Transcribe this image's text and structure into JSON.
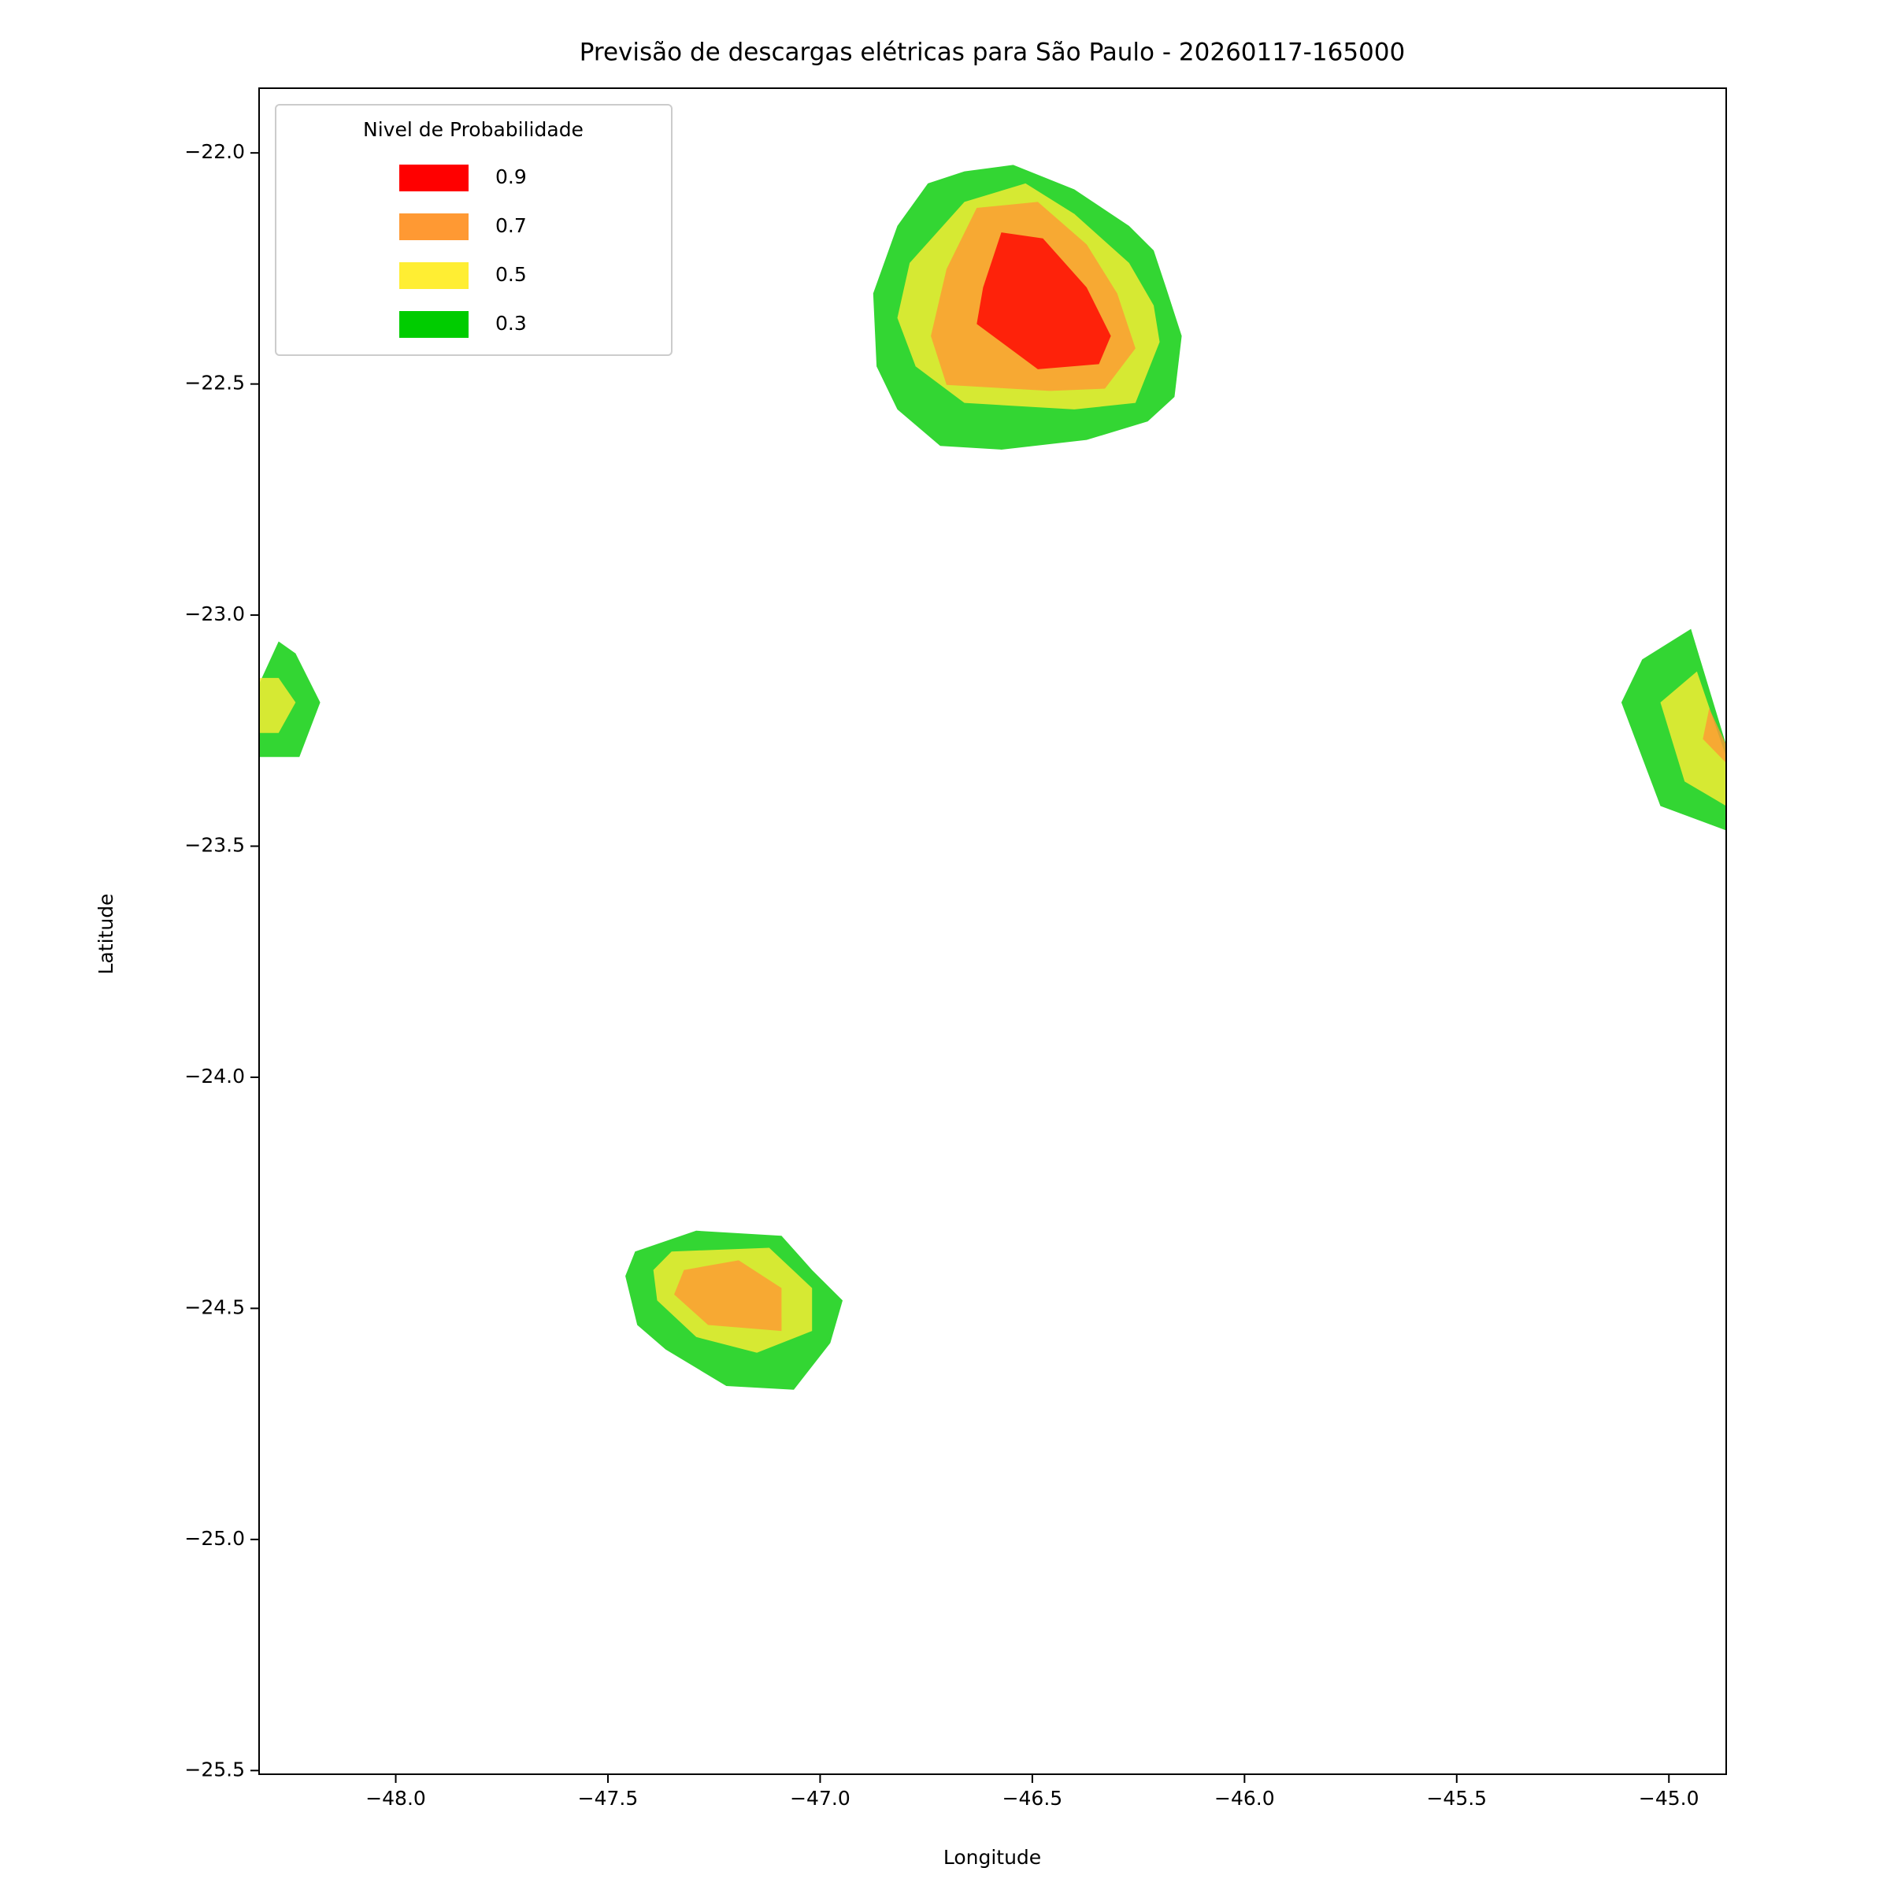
{
  "chart_data": {
    "type": "contour",
    "title": "Previsão de descargas elétricas para São Paulo - 20260117-165000",
    "x_label": "Longitude",
    "y_label": "Latitude",
    "legend_title": "Nivel de Probabilidade",
    "legend_position": "upper left",
    "alpha": 0.8,
    "xlim": [
      -48.322,
      -44.865
    ],
    "ylim": [
      -25.508,
      -21.86
    ],
    "xticks": [
      {
        "value": -48.0,
        "label": "−48.0"
      },
      {
        "value": -47.5,
        "label": "−47.5"
      },
      {
        "value": -47.0,
        "label": "−47.0"
      },
      {
        "value": -46.5,
        "label": "−46.5"
      },
      {
        "value": -46.0,
        "label": "−46.0"
      },
      {
        "value": -45.5,
        "label": "−45.5"
      },
      {
        "value": -45.0,
        "label": "−45.0"
      }
    ],
    "yticks": [
      {
        "value": -22.0,
        "label": "−22.0"
      },
      {
        "value": -22.5,
        "label": "−22.5"
      },
      {
        "value": -23.0,
        "label": "−23.0"
      },
      {
        "value": -23.5,
        "label": "−23.5"
      },
      {
        "value": -24.0,
        "label": "−24.0"
      },
      {
        "value": -24.5,
        "label": "−24.5"
      },
      {
        "value": -25.0,
        "label": "−25.0"
      },
      {
        "value": -25.5,
        "label": "−25.5"
      }
    ],
    "series": [
      {
        "name": "0.9",
        "color": "#ff0000",
        "polygons": [
          [
            [
              -46.573,
              -22.172
            ],
            [
              -46.475,
              -22.185
            ],
            [
              -46.372,
              -22.291
            ],
            [
              -46.315,
              -22.396
            ],
            [
              -46.343,
              -22.457
            ],
            [
              -46.487,
              -22.468
            ],
            [
              -46.631,
              -22.37
            ],
            [
              -46.616,
              -22.291
            ]
          ]
        ]
      },
      {
        "name": "0.7",
        "color": "#ff9933",
        "polygons": [
          [
            [
              -46.631,
              -22.119
            ],
            [
              -46.487,
              -22.106
            ],
            [
              -46.372,
              -22.198
            ],
            [
              -46.3,
              -22.304
            ],
            [
              -46.257,
              -22.423
            ],
            [
              -46.329,
              -22.51
            ],
            [
              -46.458,
              -22.515
            ],
            [
              -46.702,
              -22.502
            ],
            [
              -46.739,
              -22.396
            ],
            [
              -46.702,
              -22.251
            ]
          ],
          [
            [
              -47.321,
              -24.417
            ],
            [
              -47.192,
              -24.396
            ],
            [
              -47.091,
              -24.456
            ],
            [
              -47.091,
              -24.549
            ],
            [
              -47.264,
              -24.536
            ],
            [
              -47.344,
              -24.47
            ]
          ],
          [
            [
              -44.905,
              -23.202
            ],
            [
              -44.865,
              -23.281
            ],
            [
              -44.865,
              -23.32
            ],
            [
              -44.92,
              -23.268
            ]
          ]
        ]
      },
      {
        "name": "0.5",
        "color": "#ffee33",
        "polygons": [
          [
            [
              -46.66,
              -22.106
            ],
            [
              -46.516,
              -22.066
            ],
            [
              -46.401,
              -22.132
            ],
            [
              -46.272,
              -22.238
            ],
            [
              -46.214,
              -22.33
            ],
            [
              -46.2,
              -22.409
            ],
            [
              -46.257,
              -22.541
            ],
            [
              -46.401,
              -22.555
            ],
            [
              -46.66,
              -22.541
            ],
            [
              -46.775,
              -22.462
            ],
            [
              -46.818,
              -22.357
            ],
            [
              -46.789,
              -22.238
            ]
          ],
          [
            [
              -47.35,
              -24.377
            ],
            [
              -47.12,
              -24.369
            ],
            [
              -47.019,
              -24.456
            ],
            [
              -47.019,
              -24.549
            ],
            [
              -47.149,
              -24.596
            ],
            [
              -47.292,
              -24.562
            ],
            [
              -47.384,
              -24.483
            ],
            [
              -47.393,
              -24.417
            ]
          ],
          [
            [
              -48.322,
              -23.136
            ],
            [
              -48.276,
              -23.136
            ],
            [
              -48.236,
              -23.189
            ],
            [
              -48.276,
              -23.255
            ],
            [
              -48.322,
              -23.255
            ]
          ],
          [
            [
              -44.934,
              -23.122
            ],
            [
              -44.865,
              -23.307
            ],
            [
              -44.865,
              -23.413
            ],
            [
              -44.963,
              -23.36
            ],
            [
              -45.02,
              -23.189
            ]
          ]
        ]
      },
      {
        "name": "0.3",
        "color": "#00cc00",
        "polygons": [
          [
            [
              -46.746,
              -22.066
            ],
            [
              -46.66,
              -22.04
            ],
            [
              -46.545,
              -22.026
            ],
            [
              -46.401,
              -22.079
            ],
            [
              -46.272,
              -22.158
            ],
            [
              -46.214,
              -22.211
            ],
            [
              -46.185,
              -22.291
            ],
            [
              -46.148,
              -22.396
            ],
            [
              -46.165,
              -22.528
            ],
            [
              -46.228,
              -22.581
            ],
            [
              -46.372,
              -22.621
            ],
            [
              -46.573,
              -22.642
            ],
            [
              -46.717,
              -22.634
            ],
            [
              -46.818,
              -22.555
            ],
            [
              -46.867,
              -22.462
            ],
            [
              -46.875,
              -22.304
            ],
            [
              -46.818,
              -22.158
            ]
          ],
          [
            [
              -47.436,
              -24.377
            ],
            [
              -47.292,
              -24.332
            ],
            [
              -47.091,
              -24.343
            ],
            [
              -47.019,
              -24.417
            ],
            [
              -46.947,
              -24.483
            ],
            [
              -46.976,
              -24.575
            ],
            [
              -47.062,
              -24.676
            ],
            [
              -47.221,
              -24.668
            ],
            [
              -47.364,
              -24.589
            ],
            [
              -47.431,
              -24.536
            ],
            [
              -47.459,
              -24.43
            ]
          ],
          [
            [
              -48.322,
              -23.307
            ],
            [
              -48.322,
              -23.149
            ],
            [
              -48.276,
              -23.057
            ],
            [
              -48.236,
              -23.083
            ],
            [
              -48.178,
              -23.189
            ],
            [
              -48.227,
              -23.307
            ]
          ],
          [
            [
              -44.948,
              -23.03
            ],
            [
              -44.865,
              -23.281
            ],
            [
              -44.865,
              -23.466
            ],
            [
              -45.02,
              -23.413
            ],
            [
              -45.112,
              -23.189
            ],
            [
              -45.063,
              -23.096
            ]
          ]
        ]
      }
    ]
  }
}
